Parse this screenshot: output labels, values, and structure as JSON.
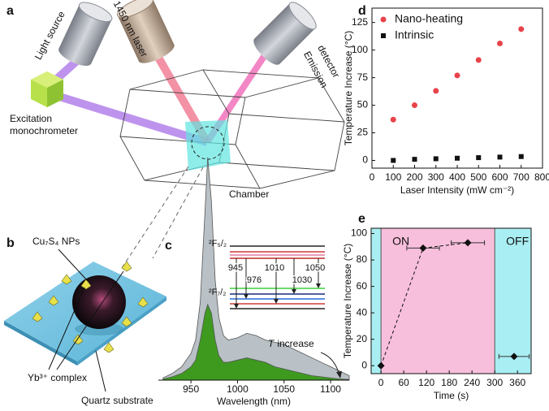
{
  "panel_labels": [
    "a",
    "b",
    "c",
    "d",
    "e"
  ],
  "diagram_a": {
    "light_source": "Light source",
    "laser": "1450 nm laser",
    "detector": [
      "Emission",
      "detector"
    ],
    "monochromator": [
      "Excitation",
      "monochrometer"
    ],
    "chamber": "Chamber"
  },
  "diagram_b": {
    "nps": "Cu₇S₄ NPs",
    "complex": "Yb³⁺ complex",
    "substrate": "Quartz substrate"
  },
  "chart_data": [
    {
      "type": "area",
      "xlabel": "Wavelength (nm)",
      "x": [
        920,
        930,
        940,
        950,
        955,
        960,
        965,
        968,
        972,
        976,
        980,
        985,
        990,
        1000,
        1010,
        1020,
        1030,
        1040,
        1050,
        1060,
        1070,
        1080,
        1090,
        1100,
        1110,
        1120
      ],
      "xlim": [
        915,
        1120
      ],
      "xticks": [
        950,
        1000,
        1050,
        1100
      ],
      "ylim": [
        0,
        1.05
      ],
      "series": [
        {
          "color": "#b9c1c6",
          "values": [
            0.01,
            0.03,
            0.06,
            0.12,
            0.18,
            0.35,
            0.75,
            1.0,
            0.8,
            0.45,
            0.28,
            0.2,
            0.18,
            0.19,
            0.21,
            0.2,
            0.18,
            0.17,
            0.16,
            0.14,
            0.12,
            0.1,
            0.08,
            0.06,
            0.04,
            0.02
          ]
        },
        {
          "color": "#3d9a1f",
          "values": [
            0.005,
            0.015,
            0.03,
            0.06,
            0.09,
            0.18,
            0.3,
            0.34,
            0.3,
            0.18,
            0.11,
            0.08,
            0.08,
            0.09,
            0.1,
            0.09,
            0.08,
            0.06,
            0.05,
            0.04,
            0.03,
            0.02,
            0.015,
            0.01,
            0.005,
            0.003
          ]
        }
      ],
      "levels": [
        "²F₅/₂",
        "²F₇/₂"
      ],
      "transitions": [
        "945",
        "976",
        "1010",
        "1030",
        "1050"
      ],
      "note": {
        "symbol": "T",
        "text": "increase"
      }
    },
    {
      "type": "scatter",
      "xlabel": "Laser Intensity (mW cm⁻²)",
      "ylabel": "Temperature Increase (°C)",
      "xlim": [
        0,
        800
      ],
      "xticks": [
        0,
        100,
        200,
        300,
        400,
        500,
        600,
        700,
        800
      ],
      "ylim": [
        -7,
        138
      ],
      "yticks": [
        0,
        25,
        50,
        75,
        100,
        125
      ],
      "legend": "upper left",
      "series": [
        {
          "name": "Nano-heating",
          "color": "#e8434a",
          "marker": "circle",
          "x": [
            100,
            200,
            300,
            400,
            500,
            600,
            700
          ],
          "values": [
            37,
            50,
            63,
            77,
            91,
            106,
            119
          ]
        },
        {
          "name": "Intrinsic",
          "color": "#111111",
          "marker": "square",
          "x": [
            100,
            200,
            300,
            400,
            500,
            600,
            700
          ],
          "values": [
            0,
            1,
            1.5,
            2,
            2.5,
            3,
            3.5
          ]
        }
      ]
    },
    {
      "type": "scatter",
      "xlabel": "Time (s)",
      "ylabel": "Temperature Increase (°C)",
      "xlim": [
        -26,
        396
      ],
      "xticks": [
        0,
        60,
        120,
        180,
        240,
        300,
        360
      ],
      "ylim": [
        -6,
        104
      ],
      "yticks": [
        0,
        20,
        40,
        60,
        80,
        100
      ],
      "regions": [
        {
          "x": [
            -26,
            0
          ],
          "color": "#a9eef2"
        },
        {
          "x": [
            0,
            300
          ],
          "color": "#f8bfdc",
          "label": "ON"
        },
        {
          "x": [
            300,
            396
          ],
          "color": "#a9eef2",
          "label": "OFF"
        }
      ],
      "series": [
        {
          "color": "#111111",
          "marker": "diamond",
          "line": "dashed",
          "x": [
            0,
            111,
            229
          ],
          "values": [
            0,
            89,
            93
          ],
          "xerr": [
            0,
            43,
            44
          ]
        },
        {
          "color": "#111111",
          "marker": "diamond",
          "line": "none",
          "x": [
            351
          ],
          "values": [
            7
          ],
          "xerr": [
            40
          ]
        }
      ]
    }
  ]
}
